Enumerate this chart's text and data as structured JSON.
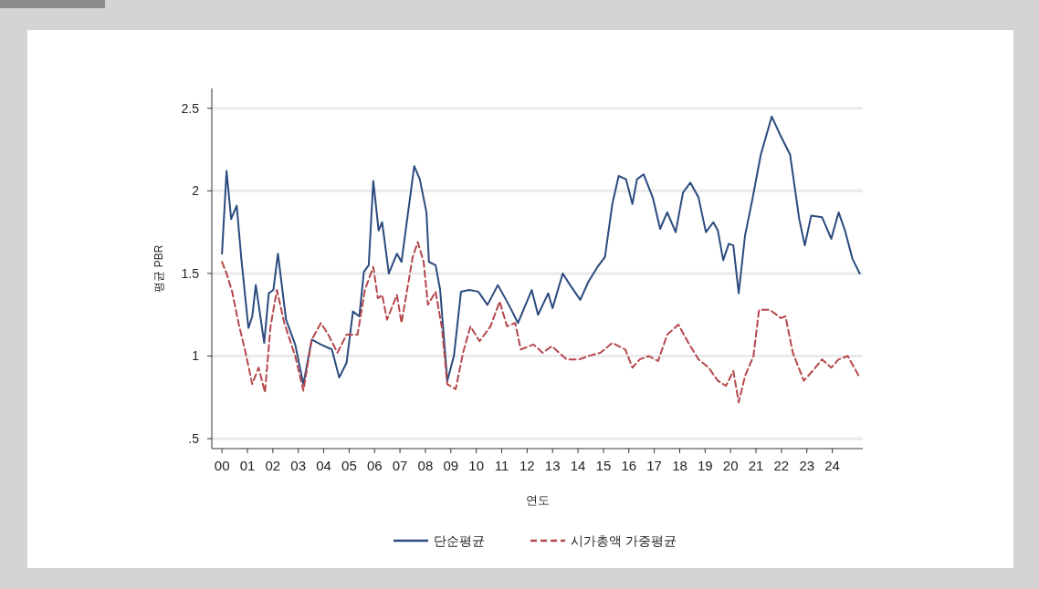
{
  "chart_data": {
    "type": "line",
    "xlabel": "연도",
    "ylabel": "평균 PBR",
    "xlim": [
      -0.4,
      25.2
    ],
    "ylim": [
      0.44,
      2.62
    ],
    "xticks": [
      {
        "value": 0,
        "label": "00"
      },
      {
        "value": 1,
        "label": "01"
      },
      {
        "value": 2,
        "label": "02"
      },
      {
        "value": 3,
        "label": "03"
      },
      {
        "value": 4,
        "label": "04"
      },
      {
        "value": 5,
        "label": "05"
      },
      {
        "value": 6,
        "label": "06"
      },
      {
        "value": 7,
        "label": "07"
      },
      {
        "value": 8,
        "label": "08"
      },
      {
        "value": 9,
        "label": "09"
      },
      {
        "value": 10,
        "label": "10"
      },
      {
        "value": 11,
        "label": "11"
      },
      {
        "value": 12,
        "label": "12"
      },
      {
        "value": 13,
        "label": "13"
      },
      {
        "value": 14,
        "label": "14"
      },
      {
        "value": 15,
        "label": "15"
      },
      {
        "value": 16,
        "label": "16"
      },
      {
        "value": 17,
        "label": "17"
      },
      {
        "value": 18,
        "label": "18"
      },
      {
        "value": 19,
        "label": "19"
      },
      {
        "value": 20,
        "label": "20"
      },
      {
        "value": 21,
        "label": "21"
      },
      {
        "value": 22,
        "label": "22"
      },
      {
        "value": 23,
        "label": "23"
      },
      {
        "value": 24,
        "label": "24"
      }
    ],
    "yticks": [
      {
        "value": 0.5,
        "label": ".5"
      },
      1,
      1.5,
      2,
      2.5
    ],
    "grid": "y",
    "legend": "bottom",
    "series": [
      {
        "name": "단순평균",
        "color": "#2b4a7e",
        "line_style": "solid",
        "x": [
          0,
          0.18,
          0.36,
          0.58,
          0.76,
          1.04,
          1.19,
          1.33,
          1.66,
          1.84,
          2.02,
          2.2,
          2.52,
          2.88,
          3.2,
          3.53,
          3.89,
          4.32,
          4.61,
          4.9,
          5.15,
          5.4,
          5.58,
          5.77,
          5.95,
          6.16,
          6.3,
          6.56,
          6.88,
          7.06,
          7.56,
          7.78,
          8.04,
          8.14,
          8.4,
          8.58,
          8.86,
          9.12,
          9.4,
          9.73,
          10.08,
          10.44,
          10.85,
          11.28,
          11.64,
          12.18,
          12.43,
          12.83,
          13.0,
          13.4,
          13.69,
          14.09,
          14.41,
          14.77,
          15.06,
          15.35,
          15.6,
          15.89,
          16.14,
          16.32,
          16.58,
          16.94,
          17.23,
          17.51,
          17.84,
          18.13,
          18.42,
          18.74,
          19.03,
          19.32,
          19.5,
          19.71,
          19.93,
          20.11,
          20.32,
          20.57,
          20.86,
          21.19,
          21.62,
          21.98,
          22.34,
          22.7,
          22.92,
          23.17,
          23.6,
          23.96,
          24.25,
          24.5,
          24.79,
          25.08
        ],
        "values": [
          1.62,
          2.12,
          1.83,
          1.91,
          1.59,
          1.17,
          1.24,
          1.43,
          1.08,
          1.38,
          1.4,
          1.62,
          1.22,
          1.07,
          0.83,
          1.1,
          1.07,
          1.04,
          0.87,
          0.96,
          1.27,
          1.24,
          1.51,
          1.55,
          2.06,
          1.76,
          1.81,
          1.5,
          1.62,
          1.57,
          2.15,
          2.07,
          1.87,
          1.57,
          1.55,
          1.4,
          0.85,
          1.0,
          1.39,
          1.4,
          1.39,
          1.31,
          1.43,
          1.31,
          1.2,
          1.4,
          1.25,
          1.38,
          1.29,
          1.5,
          1.43,
          1.34,
          1.45,
          1.54,
          1.6,
          1.92,
          2.09,
          2.07,
          1.92,
          2.07,
          2.1,
          1.96,
          1.77,
          1.87,
          1.75,
          1.99,
          2.05,
          1.96,
          1.75,
          1.81,
          1.76,
          1.58,
          1.68,
          1.67,
          1.38,
          1.73,
          1.95,
          2.22,
          2.45,
          2.33,
          2.22,
          1.83,
          1.67,
          1.85,
          1.84,
          1.71,
          1.87,
          1.76,
          1.59,
          1.5
        ]
      },
      {
        "name": "시가총액 가중평균",
        "color": "#b5474b",
        "line_style": "dashed",
        "x": [
          0,
          0.18,
          0.4,
          0.65,
          0.9,
          1.19,
          1.44,
          1.69,
          1.91,
          2.16,
          2.45,
          2.88,
          3.2,
          3.53,
          3.89,
          4.18,
          4.54,
          4.9,
          5.33,
          5.62,
          5.95,
          6.13,
          6.3,
          6.49,
          6.88,
          7.06,
          7.5,
          7.7,
          7.93,
          8.1,
          8.4,
          8.65,
          8.86,
          9.19,
          9.48,
          9.77,
          10.13,
          10.56,
          10.92,
          11.21,
          11.53,
          11.75,
          12.25,
          12.61,
          12.97,
          13.55,
          14.05,
          14.41,
          14.88,
          15.35,
          15.86,
          16.14,
          16.43,
          16.79,
          17.15,
          17.51,
          17.95,
          18.38,
          18.74,
          19.14,
          19.5,
          19.82,
          20.11,
          20.32,
          20.57,
          20.9,
          21.12,
          21.55,
          21.98,
          22.16,
          22.45,
          22.88,
          23.28,
          23.6,
          23.96,
          24.25,
          24.61,
          25.08
        ],
        "values": [
          1.57,
          1.5,
          1.39,
          1.2,
          1.04,
          0.83,
          0.93,
          0.78,
          1.18,
          1.4,
          1.2,
          1.0,
          0.79,
          1.1,
          1.2,
          1.13,
          1.02,
          1.13,
          1.13,
          1.4,
          1.54,
          1.35,
          1.37,
          1.22,
          1.37,
          1.2,
          1.6,
          1.69,
          1.57,
          1.31,
          1.39,
          1.17,
          0.83,
          0.8,
          1.02,
          1.18,
          1.09,
          1.18,
          1.33,
          1.18,
          1.2,
          1.04,
          1.07,
          1.02,
          1.06,
          0.98,
          0.98,
          1.0,
          1.02,
          1.08,
          1.04,
          0.93,
          0.98,
          1.0,
          0.97,
          1.13,
          1.19,
          1.07,
          0.98,
          0.93,
          0.85,
          0.82,
          0.91,
          0.72,
          0.88,
          1.0,
          1.28,
          1.28,
          1.23,
          1.24,
          1.02,
          0.85,
          0.92,
          0.98,
          0.93,
          0.98,
          1.0,
          0.87
        ]
      }
    ]
  }
}
